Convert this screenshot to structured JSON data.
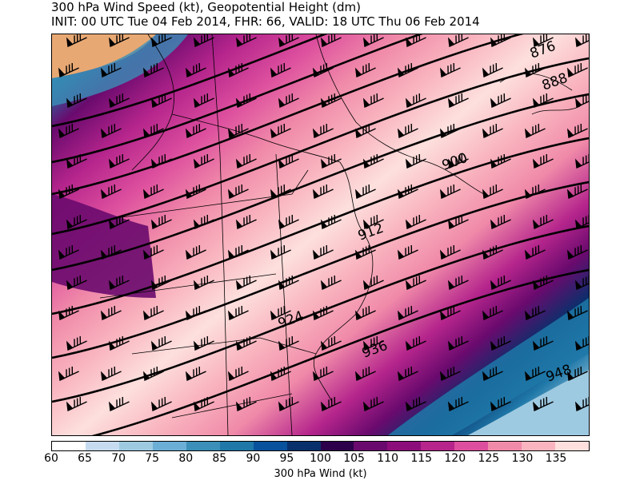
{
  "header": {
    "title": "300 hPa Wind Speed (kt), Geopotential Height (dm)",
    "subtitle": "INIT: 00 UTC Tue 04 Feb 2014, FHR: 66, VALID: 18 UTC Thu 06 Feb 2014"
  },
  "map": {
    "variable": "300 hPa wind speed shading with geopotential height contours and wind barbs",
    "contour_labels": [
      "876",
      "888",
      "900",
      "912",
      "924",
      "936",
      "948"
    ]
  },
  "colorbar": {
    "label": "300 hPa Wind (kt)",
    "ticks": [
      "60",
      "65",
      "70",
      "75",
      "80",
      "85",
      "90",
      "95",
      "100",
      "105",
      "110",
      "115",
      "120",
      "125",
      "130",
      "135"
    ],
    "colors": [
      "#ffffff",
      "#c6dbef",
      "#9ecae1",
      "#6baed6",
      "#3b8fb8",
      "#1f78a8",
      "#08519c",
      "#08306b",
      "#2d004b",
      "#6a0a6e",
      "#8c0e7a",
      "#b5258c",
      "#dd4f9e",
      "#f08aa9",
      "#f9b4bf",
      "#fde0dd"
    ]
  },
  "chart_data": {
    "type": "heatmap",
    "title": "300 hPa Wind Speed (kt), Geopotential Height (dm)",
    "levels": [
      60,
      65,
      70,
      75,
      80,
      85,
      90,
      95,
      100,
      105,
      110,
      115,
      120,
      125,
      130,
      135
    ],
    "height_contours_dm": [
      876,
      888,
      900,
      912,
      924,
      936,
      948
    ]
  }
}
